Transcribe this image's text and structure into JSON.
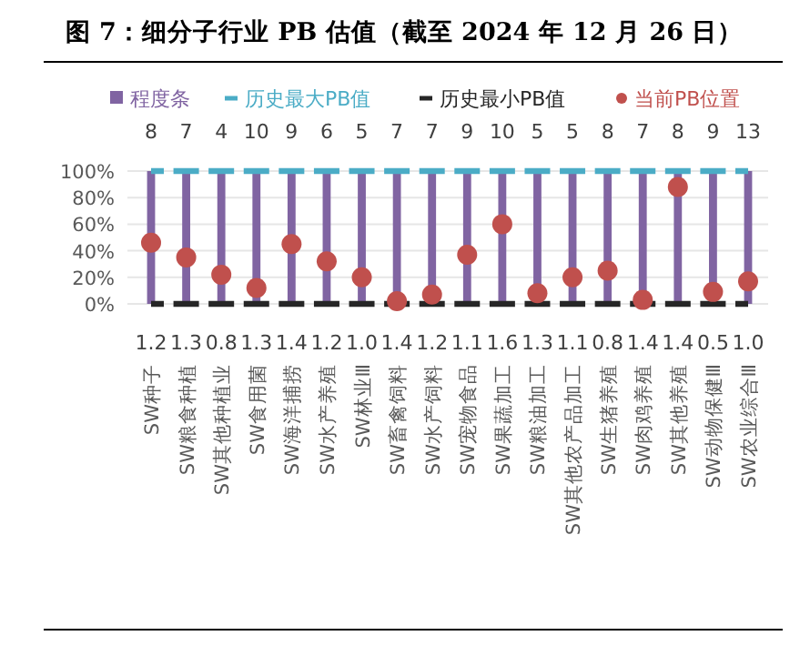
{
  "chart_data": {
    "type": "bar",
    "title": "图 7：细分子行业 PB 估值（截至 2024 年 12 月 26 日）",
    "categories": [
      "SW种子",
      "SW粮食种植",
      "SW其他种植业",
      "SW食用菌",
      "SW海洋捕捞",
      "SW水产养殖",
      "SW林业Ⅲ",
      "SW畜禽饲料",
      "SW水产饲料",
      "SW宠物食品",
      "SW果蔬加工",
      "SW粮油加工",
      "SW其他农产品加工",
      "SW生猪养殖",
      "SW肉鸡养殖",
      "SW其他养殖",
      "SW动物保健Ⅲ",
      "SW农业综合Ⅲ"
    ],
    "series": [
      {
        "name": "程度条",
        "type": "bar",
        "color": "#8064a2",
        "values": [
          100,
          100,
          100,
          100,
          100,
          100,
          100,
          100,
          100,
          100,
          100,
          100,
          100,
          100,
          100,
          100,
          100,
          100
        ]
      },
      {
        "name": "历史最大PB值",
        "type": "line",
        "line_style": "dashed",
        "marker": "none",
        "color": "#4bacc6",
        "values": [
          100,
          100,
          100,
          100,
          100,
          100,
          100,
          100,
          100,
          100,
          100,
          100,
          100,
          100,
          100,
          100,
          100,
          100
        ]
      },
      {
        "name": "历史最小PB值",
        "type": "line",
        "line_style": "dashed",
        "marker": "none",
        "color": "#262626",
        "values": [
          0,
          0,
          0,
          0,
          0,
          0,
          0,
          0,
          0,
          0,
          0,
          0,
          0,
          0,
          0,
          0,
          0,
          0
        ]
      },
      {
        "name": "当前PB位置",
        "type": "scatter",
        "marker": "circle",
        "color": "#c0504d",
        "values": [
          46,
          35,
          22,
          12,
          45,
          32,
          20,
          2,
          7,
          37,
          60,
          8,
          20,
          25,
          3,
          88,
          9,
          17
        ]
      }
    ],
    "annotations": [
      {
        "text": "8",
        "x": "SW种子",
        "y": 100
      },
      {
        "text": "7",
        "x": "SW粮食种植",
        "y": 100
      },
      {
        "text": "4",
        "x": "SW其他种植业",
        "y": 100
      },
      {
        "text": "10",
        "x": "SW食用菌",
        "y": 100
      },
      {
        "text": "9",
        "x": "SW海洋捕捞",
        "y": 100
      },
      {
        "text": "6",
        "x": "SW水产养殖",
        "y": 100
      },
      {
        "text": "5",
        "x": "SW林业Ⅲ",
        "y": 100
      },
      {
        "text": "7",
        "x": "SW畜禽饲料",
        "y": 100
      },
      {
        "text": "7",
        "x": "SW水产饲料",
        "y": 100
      },
      {
        "text": "9",
        "x": "SW宠物食品",
        "y": 100
      },
      {
        "text": "10",
        "x": "SW果蔬加工",
        "y": 100
      },
      {
        "text": "5",
        "x": "SW粮油加工",
        "y": 100
      },
      {
        "text": "5",
        "x": "SW其他农产品加工",
        "y": 100
      },
      {
        "text": "8",
        "x": "SW生猪养殖",
        "y": 100
      },
      {
        "text": "7",
        "x": "SW肉鸡养殖",
        "y": 100
      },
      {
        "text": "8",
        "x": "SW其他养殖",
        "y": 100
      },
      {
        "text": "9",
        "x": "SW动物保健Ⅲ",
        "y": 100
      },
      {
        "text": "13",
        "x": "SW农业综合Ⅲ",
        "y": 100
      },
      {
        "text": "1.2",
        "x": "SW种子",
        "y": 0
      },
      {
        "text": "1.3",
        "x": "SW粮食种植",
        "y": 0
      },
      {
        "text": "0.8",
        "x": "SW其他种植业",
        "y": 0
      },
      {
        "text": "1.3",
        "x": "SW食用菌",
        "y": 0
      },
      {
        "text": "1.4",
        "x": "SW海洋捕捞",
        "y": 0
      },
      {
        "text": "1.2",
        "x": "SW水产养殖",
        "y": 0
      },
      {
        "text": "1.0",
        "x": "SW林业Ⅲ",
        "y": 0
      },
      {
        "text": "1.4",
        "x": "SW畜禽饲料",
        "y": 0
      },
      {
        "text": "1.2",
        "x": "SW水产饲料",
        "y": 0
      },
      {
        "text": "1.1",
        "x": "SW宠物食品",
        "y": 0
      },
      {
        "text": "1.6",
        "x": "SW果蔬加工",
        "y": 0
      },
      {
        "text": "1.3",
        "x": "SW粮油加工",
        "y": 0
      },
      {
        "text": "1.1",
        "x": "SW其他农产品加工",
        "y": 0
      },
      {
        "text": "0.8",
        "x": "SW生猪养殖",
        "y": 0
      },
      {
        "text": "1.4",
        "x": "SW肉鸡养殖",
        "y": 0
      },
      {
        "text": "1.4",
        "x": "SW其他养殖",
        "y": 0
      },
      {
        "text": "0.5",
        "x": "SW动物保健Ⅲ",
        "y": 0
      },
      {
        "text": "1.0",
        "x": "SW农业综合Ⅲ",
        "y": 0
      }
    ],
    "ylim": [
      0,
      100
    ],
    "yticks": [
      {
        "value": 0,
        "label": "0%"
      },
      {
        "value": 20,
        "label": "20%"
      },
      {
        "value": 40,
        "label": "40%"
      },
      {
        "value": 60,
        "label": "60%"
      },
      {
        "value": 80,
        "label": "80%"
      },
      {
        "value": 100,
        "label": "100%"
      }
    ],
    "grid": "y",
    "legend": "top"
  }
}
